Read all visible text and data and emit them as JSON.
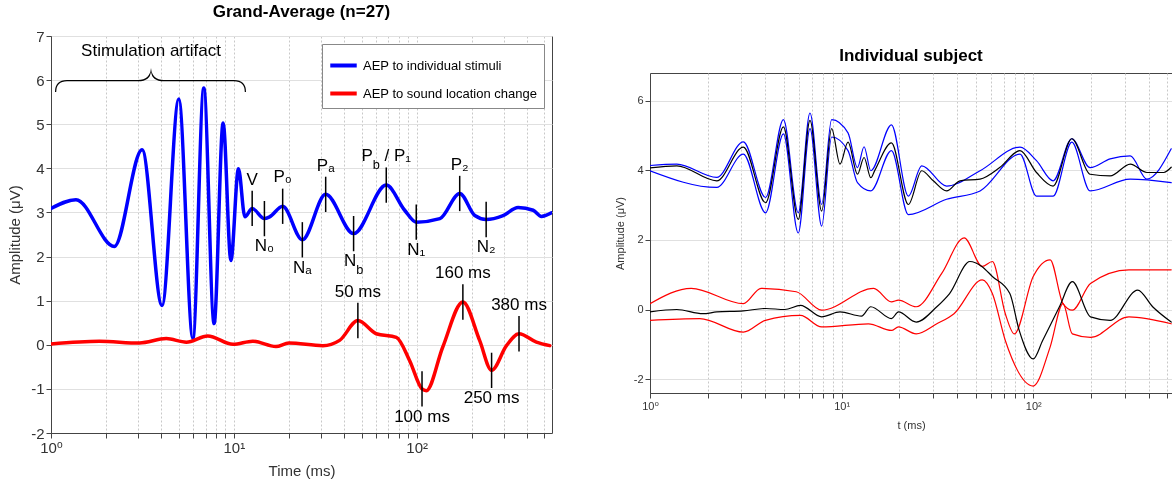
{
  "chart_data": [
    {
      "type": "line",
      "title": "Grand-Average (n=27)",
      "xlabel": "Time (ms)",
      "ylabel": "Amplitude (μV)",
      "log": "x",
      "grid": true,
      "legend": "top right",
      "xlim": [
        1,
        550
      ],
      "ylim": [
        -2,
        7
      ],
      "xticks": [
        {
          "value": 1,
          "label": "10⁰"
        },
        {
          "value": 2,
          "label": null
        },
        {
          "value": 3,
          "label": null
        },
        {
          "value": 4,
          "label": null
        },
        {
          "value": 5,
          "label": null
        },
        {
          "value": 6,
          "label": null
        },
        {
          "value": 7,
          "label": null
        },
        {
          "value": 8,
          "label": null
        },
        {
          "value": 9,
          "label": null
        },
        {
          "value": 10,
          "label": "10¹"
        },
        {
          "value": 20,
          "label": null
        },
        {
          "value": 30,
          "label": null
        },
        {
          "value": 40,
          "label": null
        },
        {
          "value": 50,
          "label": null
        },
        {
          "value": 60,
          "label": null
        },
        {
          "value": 70,
          "label": null
        },
        {
          "value": 80,
          "label": null
        },
        {
          "value": 90,
          "label": null
        },
        {
          "value": 100,
          "label": "10²"
        },
        {
          "value": 200,
          "label": null
        },
        {
          "value": 300,
          "label": null
        },
        {
          "value": 400,
          "label": null
        },
        {
          "value": 500,
          "label": null
        }
      ],
      "yticks": [
        -2,
        -1,
        0,
        1,
        2,
        3,
        4,
        5,
        6,
        7
      ],
      "series": [
        {
          "name": "AEP to individual stimuli",
          "color": "#0000ff",
          "x": [
            1,
            1.37,
            2.22,
            3.15,
            4.05,
            5.0,
            5.97,
            6.85,
            7.8,
            8.74,
            9.64,
            10.6,
            11.5,
            12.6,
            14.7,
            15.7,
            18.5,
            23.7,
            31.8,
            45.2,
            68.2,
            86,
            99.5,
            134,
            172,
            208,
            240,
            297,
            359,
            434,
            481,
            546
          ],
          "values": [
            3.09,
            3.29,
            2.23,
            4.42,
            0.89,
            5.57,
            0.14,
            5.82,
            0.48,
            5.03,
            1.91,
            3.99,
            2.9,
            3.09,
            2.86,
            2.9,
            3.14,
            2.38,
            3.41,
            2.52,
            3.62,
            3.05,
            2.78,
            2.86,
            3.43,
            2.93,
            2.84,
            2.93,
            3.11,
            3.05,
            2.91,
            2.99
          ]
        },
        {
          "name": "AEP to sound location change",
          "color": "#ff0000",
          "x": [
            1,
            1.84,
            3.05,
            4.27,
            5.5,
            7.2,
            9.9,
            12.7,
            17,
            20,
            30.7,
            37.9,
            47.7,
            60.1,
            77.4,
            91.6,
            107,
            113,
            139,
            179,
            221,
            257,
            310,
            363,
            452,
            535
          ],
          "values": [
            0.02,
            0.08,
            0.04,
            0.14,
            0.06,
            0.2,
            0.01,
            0.08,
            -0.04,
            0.04,
            -0.02,
            0.1,
            0.55,
            0.25,
            0.17,
            -0.36,
            -1.0,
            -1.04,
            -0.05,
            0.97,
            0.1,
            -0.58,
            -0.02,
            0.25,
            0.06,
            -0.02
          ]
        }
      ],
      "annotations": [
        "Stimulation artifact",
        {
          "text": "V",
          "x": 12.6,
          "y": 3.09
        },
        {
          "text": "N₀",
          "x": 14.7,
          "y": 2.86
        },
        {
          "text": "P₀",
          "x": 18.5,
          "y": 3.14
        },
        {
          "text": "Nₐ",
          "x": 23.7,
          "y": 2.38
        },
        {
          "text": "Pₐ",
          "x": 31.8,
          "y": 3.41
        },
        {
          "text": "N$_{b}$",
          "x": 45.2,
          "y": 2.52
        },
        {
          "text": "P$_{b}$ / P₁",
          "x": 68.2,
          "y": 3.62
        },
        {
          "text": "N₁",
          "x": 99.5,
          "y": 2.78
        },
        {
          "text": "P₂",
          "x": 172,
          "y": 3.43
        },
        {
          "text": "N₂",
          "x": 240,
          "y": 2.84
        },
        {
          "text": "50 ms",
          "x": 47.7,
          "y": 0.55
        },
        {
          "text": "100 ms",
          "x": 107,
          "y": -1.0
        },
        {
          "text": "160 ms",
          "x": 179,
          "y": 0.97
        },
        {
          "text": "250 ms",
          "x": 257,
          "y": -0.58
        },
        {
          "text": "380 ms",
          "x": 363,
          "y": 0.25
        }
      ]
    },
    {
      "type": "line",
      "title": "Individual subject",
      "xlabel": "t (ms)",
      "ylabel": "Amplitude (μV)",
      "log": "x",
      "grid": true,
      "xlim": [
        1,
        530
      ],
      "ylim": [
        -2.4,
        6.8
      ],
      "xticks": [
        {
          "value": 1,
          "label": "10⁰"
        },
        {
          "value": 2,
          "label": null
        },
        {
          "value": 3,
          "label": null
        },
        {
          "value": 4,
          "label": null
        },
        {
          "value": 5,
          "label": null
        },
        {
          "value": 6,
          "label": null
        },
        {
          "value": 7,
          "label": null
        },
        {
          "value": 8,
          "label": null
        },
        {
          "value": 9,
          "label": null
        },
        {
          "value": 10,
          "label": "10¹"
        },
        {
          "value": 20,
          "label": null
        },
        {
          "value": 30,
          "label": null
        },
        {
          "value": 40,
          "label": null
        },
        {
          "value": 50,
          "label": null
        },
        {
          "value": 60,
          "label": null
        },
        {
          "value": 70,
          "label": null
        },
        {
          "value": 80,
          "label": null
        },
        {
          "value": 90,
          "label": null
        },
        {
          "value": 100,
          "label": "10²"
        },
        {
          "value": 200,
          "label": null
        },
        {
          "value": 300,
          "label": null
        },
        {
          "value": 400,
          "label": null
        },
        {
          "value": 500,
          "label": null
        }
      ],
      "yticks": [
        -2,
        0,
        2,
        4,
        6
      ],
      "series": [
        {
          "color": "#0000ff",
          "x": [
            1,
            1.38,
            2.23,
            3.07,
            4.01,
            4.97,
            5.94,
            6.84,
            7.87,
            8.87,
            10.8,
            12.1,
            13.1,
            14.2,
            18.2,
            22.3,
            26.2,
            35.3,
            52.8,
            85.3,
            104,
            127,
            159,
            198,
            252,
            321,
            392,
            525
          ],
          "values": [
            4.14,
            4.18,
            3.8,
            4.82,
            3.22,
            5.46,
            2.78,
            5.65,
            3.02,
            5.46,
            5.08,
            4.08,
            4.68,
            3.99,
            5.31,
            3.26,
            4.13,
            3.55,
            3.99,
            4.67,
            4.28,
            3.7,
            4.91,
            4.08,
            4.33,
            4.42,
            3.75,
            4.62
          ]
        },
        {
          "color": "#0000ff",
          "x": [
            1,
            2.23,
            3.07,
            4.01,
            4.97,
            5.94,
            6.84,
            7.87,
            8.87,
            10.8,
            12.1,
            14.2,
            18.2,
            22.3,
            35.3,
            52.8,
            85.3,
            104,
            127,
            159,
            198,
            321,
            525
          ],
          "values": [
            3.99,
            3.51,
            4.47,
            2.78,
            5.05,
            2.2,
            5.2,
            2.4,
            4.96,
            4.57,
            3.65,
            3.41,
            4.57,
            2.73,
            3.17,
            3.41,
            4.47,
            3.26,
            3.26,
            4.81,
            3.41,
            3.75,
            3.65
          ]
        },
        {
          "color": "#000000",
          "x": [
            1,
            1.38,
            2.23,
            3.07,
            4.01,
            4.97,
            5.94,
            6.84,
            7.87,
            8.87,
            9.81,
            10.8,
            12.1,
            13.1,
            14.2,
            14.9,
            18.2,
            22.3,
            26.2,
            30.1,
            35.3,
            41.5,
            52.8,
            67.1,
            85.3,
            104,
            127,
            159,
            198,
            252,
            321,
            392,
            479,
            525
          ],
          "values": [
            4.07,
            4.13,
            3.7,
            4.67,
            3.07,
            5.25,
            2.59,
            5.44,
            2.83,
            5.2,
            4.18,
            4.81,
            3.89,
            4.37,
            3.79,
            4.0,
            4.79,
            3.02,
            3.99,
            3.7,
            3.41,
            3.7,
            3.75,
            4.09,
            4.57,
            3.94,
            3.55,
            4.91,
            3.89,
            3.84,
            4.18,
            3.94,
            3.94,
            4.09
          ]
        },
        {
          "color": "#ff0000",
          "x": [
            1,
            1.64,
            3.07,
            3.8,
            5.8,
            7.87,
            14.7,
            18.2,
            19.8,
            24.5,
            33.3,
            43.6,
            54.2,
            61.2,
            71.5,
            79.7,
            100,
            122.5,
            143,
            160,
            199,
            316,
            525
          ],
          "values": [
            0.17,
            0.61,
            0.17,
            0.61,
            0.51,
            -0.02,
            0.61,
            0.22,
            0.27,
            0.08,
            1.04,
            2.06,
            1.24,
            1.38,
            -0.12,
            -0.7,
            0.95,
            1.43,
            0.17,
            -0.02,
            0.75,
            1.14,
            1.14
          ]
        },
        {
          "color": "#ff0000",
          "x": [
            1,
            1.82,
            3.07,
            4.0,
            6.1,
            7.87,
            13.8,
            18.2,
            19.8,
            24.5,
            31.4,
            38.6,
            54.2,
            61.2,
            71.5,
            100,
            122.5,
            143,
            160,
            199,
            316,
            525
          ],
          "values": [
            -0.31,
            -0.26,
            -0.65,
            -0.31,
            -0.17,
            -0.5,
            -0.41,
            -0.6,
            -0.5,
            -0.7,
            -0.41,
            -0.12,
            0.85,
            0.46,
            -0.89,
            -2.2,
            -1.08,
            0.17,
            -0.7,
            -0.8,
            -0.21,
            -0.41
          ]
        },
        {
          "color": "#000000",
          "x": [
            1,
            1.38,
            1.89,
            2.23,
            3.07,
            4.01,
            5.05,
            6.1,
            7.87,
            9.81,
            12.7,
            14.2,
            18.2,
            19.8,
            24.5,
            31.4,
            36.6,
            46.7,
            53.9,
            61.2,
            75.5,
            84.5,
            100,
            112,
            137,
            160,
            199,
            252,
            351,
            420,
            525
          ],
          "values": [
            -0.07,
            0.0,
            -0.12,
            -0.07,
            -0.04,
            0.03,
            0.0,
            0.12,
            -0.21,
            -0.07,
            -0.19,
            0.08,
            -0.26,
            -0.07,
            -0.36,
            0.08,
            0.46,
            1.38,
            1.24,
            0.95,
            0.46,
            -0.6,
            -1.42,
            -0.89,
            0.08,
            0.8,
            -0.21,
            -0.31,
            0.56,
            0.08,
            -0.36
          ]
        }
      ]
    }
  ]
}
